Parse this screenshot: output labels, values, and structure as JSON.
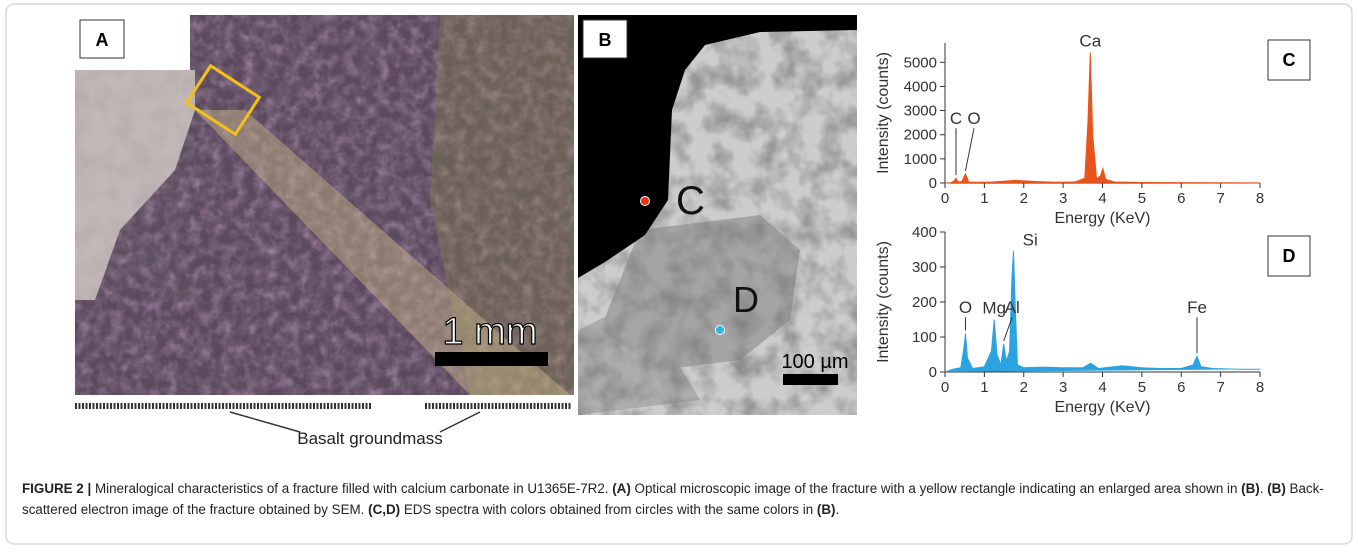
{
  "figure": {
    "panel_a": {
      "label": "A",
      "scale": "1 mm",
      "annotation": "Basalt groundmass"
    },
    "panel_b": {
      "label": "B",
      "point_c": "C",
      "point_d": "D",
      "scale": "100 µm"
    }
  },
  "chart_data": [
    {
      "type": "spectrum",
      "panel_label": "C",
      "color": "#e8541a",
      "x_label": "Energy (KeV)",
      "y_label": "Intensity (counts)",
      "xlim": [
        0,
        8
      ],
      "xticks": [
        0,
        1,
        2,
        3,
        4,
        5,
        6,
        7,
        8
      ],
      "ylim": [
        0,
        5800
      ],
      "yticks": [
        0,
        1000,
        2000,
        3000,
        4000,
        5000
      ],
      "x": [
        0,
        0.15,
        0.23,
        0.28,
        0.33,
        0.43,
        0.52,
        0.6,
        0.8,
        1.2,
        1.8,
        2.3,
        2.8,
        3.3,
        3.55,
        3.63,
        3.69,
        3.75,
        3.85,
        3.95,
        4.01,
        4.08,
        4.3,
        5,
        6,
        7,
        8
      ],
      "values": [
        0,
        10,
        80,
        200,
        40,
        60,
        380,
        40,
        30,
        40,
        110,
        60,
        30,
        40,
        200,
        2500,
        5400,
        2000,
        150,
        300,
        600,
        150,
        40,
        20,
        15,
        10,
        5
      ],
      "annotations": [
        {
          "text": "C",
          "x": 0.28
        },
        {
          "text": "O",
          "x": 0.52
        },
        {
          "text": "Ca",
          "x": 3.69
        }
      ]
    },
    {
      "type": "spectrum",
      "panel_label": "D",
      "color": "#2aa3e0",
      "x_label": "Energy (KeV)",
      "y_label": "Intensity (counts)",
      "xlim": [
        0,
        8
      ],
      "xticks": [
        0,
        1,
        2,
        3,
        4,
        5,
        6,
        7,
        8
      ],
      "ylim": [
        0,
        400
      ],
      "yticks": [
        0,
        100,
        200,
        300,
        400
      ],
      "x": [
        0,
        0.2,
        0.4,
        0.47,
        0.52,
        0.57,
        0.7,
        1.0,
        1.18,
        1.25,
        1.32,
        1.42,
        1.49,
        1.56,
        1.64,
        1.7,
        1.74,
        1.78,
        1.84,
        2.0,
        2.5,
        3.0,
        3.5,
        3.7,
        3.9,
        4.5,
        5.0,
        5.5,
        6.0,
        6.3,
        6.4,
        6.5,
        6.8,
        7.5,
        8
      ],
      "values": [
        0,
        8,
        12,
        60,
        110,
        40,
        10,
        15,
        60,
        150,
        50,
        20,
        80,
        30,
        60,
        270,
        345,
        200,
        20,
        12,
        14,
        12,
        12,
        25,
        10,
        18,
        12,
        10,
        10,
        20,
        45,
        15,
        10,
        8,
        8
      ],
      "annotations": [
        {
          "text": "O",
          "x": 0.52
        },
        {
          "text": "Mg",
          "x": 1.25
        },
        {
          "text": "Al",
          "x": 1.49
        },
        {
          "text": "Si",
          "x": 1.74
        },
        {
          "text": "Fe",
          "x": 6.4
        }
      ]
    }
  ],
  "caption": {
    "runs": [
      {
        "text": "FIGURE 2 |",
        "bold": true
      },
      {
        "text": " Mineralogical characteristics of a fracture filled with calcium carbonate in U1365E-7R2. ",
        "bold": false
      },
      {
        "text": "(A)",
        "bold": true
      },
      {
        "text": " Optical microscopic image of the fracture with a yellow rectangle indicating an enlarged area shown in ",
        "bold": false
      },
      {
        "text": "(B)",
        "bold": true
      },
      {
        "text": ". ",
        "bold": false
      },
      {
        "text": "(B)",
        "bold": true
      },
      {
        "text": " Back-scattered electron image of the fracture obtained by SEM. ",
        "bold": false
      },
      {
        "text": "(C,D)",
        "bold": true
      },
      {
        "text": " EDS spectra with colors obtained from circles with the same colors in ",
        "bold": false
      },
      {
        "text": "(B)",
        "bold": true
      },
      {
        "text": ".",
        "bold": false
      }
    ]
  }
}
